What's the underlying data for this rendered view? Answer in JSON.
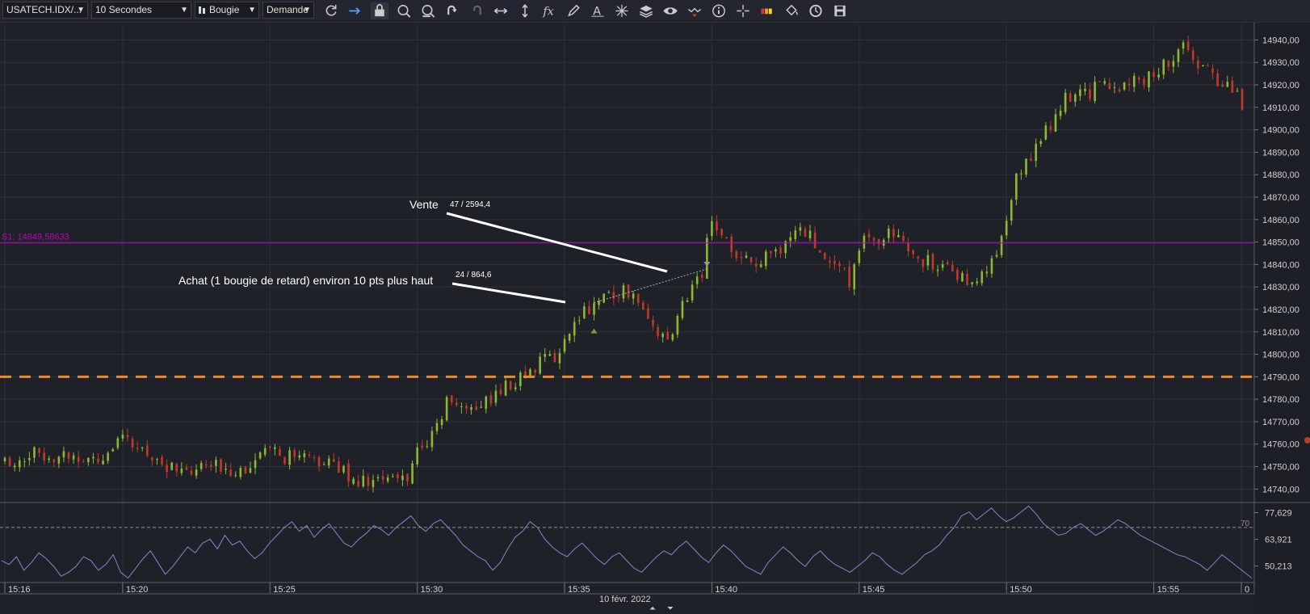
{
  "toolbar": {
    "instrument": "USATECH.IDX/...",
    "period": "10 Secondes",
    "chart_style": "Bougie",
    "offer_side": "Demande",
    "icons": [
      "refresh-icon",
      "shift-right-icon",
      "lock-icon",
      "zoom-in-icon",
      "zoom-out-icon",
      "undo-icon",
      "redo-icon",
      "horizontal-resize-icon",
      "vertical-resize-icon",
      "fx-indicator-icon",
      "pencil-icon",
      "text-tool-icon",
      "pattern-icon",
      "layers-icon",
      "eye-icon",
      "signals-icon",
      "info-icon",
      "crosshair-icon",
      "color-bar-icon",
      "paint-bucket-icon",
      "history-icon",
      "save-icon"
    ]
  },
  "colors": {
    "background": "#1e2128",
    "bullish": "#8cb832",
    "bearish": "#c0392b",
    "pivot_line": "#c000c0",
    "dashed_level": "#f08a24",
    "oscillator": "#7b8cc8"
  },
  "chart_data": [
    {
      "type": "candlestick",
      "title": "",
      "x_ticks": [
        "15:16",
        "15:20",
        "15:25",
        "15:30",
        "15:35",
        "15:40",
        "15:45",
        "15:50",
        "15:55",
        "0"
      ],
      "date_label": "10 févr. 2022",
      "y_ticks": [
        "14940,00",
        "14930,00",
        "14920,00",
        "14910,00",
        "14900,00",
        "14890,00",
        "14880,00",
        "14870,00",
        "14860,00",
        "14850,00",
        "14840,00",
        "14830,00",
        "14820,00",
        "14810,00",
        "14800,00",
        "14790,00",
        "14780,00",
        "14770,00",
        "14760,00",
        "14750,00",
        "14740,00"
      ],
      "ylim": [
        14734,
        14947
      ],
      "time_range": [
        "15:16",
        "15:58"
      ],
      "pivot_label": "S1: 14849,58633",
      "pivot_value": 14849.58633,
      "dashed_level_value": 14790,
      "annotations": [
        {
          "label": "Vente",
          "detail": "47 / 2594,4",
          "price": 14838,
          "time": "15:39:50"
        },
        {
          "label": "Achat (1 bougie de retard) environ 10 pts plus haut",
          "detail": "24 / 864,6",
          "price": 14823,
          "time": "15:36:00"
        }
      ],
      "close_path": [
        [
          "15:16",
          14752
        ],
        [
          "15:17",
          14756
        ],
        [
          "15:18",
          14755
        ],
        [
          "15:19",
          14753
        ],
        [
          "15:20",
          14761
        ],
        [
          "15:21",
          14755
        ],
        [
          "15:22",
          14746
        ],
        [
          "15:23",
          14750
        ],
        [
          "15:24",
          14749
        ],
        [
          "15:25",
          14756
        ],
        [
          "15:26",
          14753
        ],
        [
          "15:27",
          14752
        ],
        [
          "15:28",
          14744
        ],
        [
          "15:29",
          14743
        ],
        [
          "15:29:40",
          14746
        ],
        [
          "15:30",
          14757
        ],
        [
          "15:30:40",
          14766
        ],
        [
          "15:31",
          14779
        ],
        [
          "15:32",
          14776
        ],
        [
          "15:33",
          14785
        ],
        [
          "15:34",
          14795
        ],
        [
          "15:34:50",
          14800
        ],
        [
          "15:35",
          14807
        ],
        [
          "15:35:30",
          14818
        ],
        [
          "15:36",
          14823
        ],
        [
          "15:37",
          14829
        ],
        [
          "15:37:40",
          14823
        ],
        [
          "15:38",
          14810
        ],
        [
          "15:38:40",
          14807
        ],
        [
          "15:39",
          14823
        ],
        [
          "15:39:40",
          14837
        ],
        [
          "15:40",
          14861
        ],
        [
          "15:40:40",
          14846
        ],
        [
          "15:41",
          14840
        ],
        [
          "15:42",
          14843
        ],
        [
          "15:43",
          14857
        ],
        [
          "15:44",
          14843
        ],
        [
          "15:44:40",
          14833
        ],
        [
          "15:45",
          14849
        ],
        [
          "15:46",
          14853
        ],
        [
          "15:47",
          14843
        ],
        [
          "15:48",
          14837
        ],
        [
          "15:49",
          14833
        ],
        [
          "15:49:40",
          14843
        ],
        [
          "15:50",
          14857
        ],
        [
          "15:50:20",
          14878
        ],
        [
          "15:51",
          14893
        ],
        [
          "15:52",
          14913
        ],
        [
          "15:53",
          14918
        ],
        [
          "15:54",
          14920
        ],
        [
          "15:55",
          14924
        ],
        [
          "15:56",
          14936
        ],
        [
          "15:57",
          14924
        ],
        [
          "15:57:40",
          14919
        ],
        [
          "15:58",
          14911
        ]
      ]
    },
    {
      "type": "line",
      "title": "",
      "y_ticks": [
        "77,629",
        "63,921",
        "50,213"
      ],
      "ylim": [
        43,
        82
      ],
      "reference_level": 70,
      "reference_label": "70",
      "values": [
        53,
        51,
        55,
        48,
        52,
        57,
        54,
        50,
        45,
        47,
        50,
        55,
        53,
        48,
        51,
        56,
        47,
        44,
        49,
        54,
        58,
        52,
        46,
        50,
        55,
        60,
        57,
        62,
        64,
        59,
        66,
        61,
        63,
        58,
        54,
        57,
        62,
        66,
        70,
        73,
        68,
        71,
        65,
        69,
        72,
        67,
        62,
        60,
        64,
        67,
        71,
        69,
        66,
        70,
        73,
        76,
        71,
        68,
        72,
        74,
        70,
        66,
        61,
        58,
        55,
        53,
        48,
        52,
        59,
        65,
        68,
        73,
        70,
        64,
        60,
        57,
        55,
        59,
        62,
        58,
        54,
        51,
        55,
        57,
        53,
        49,
        47,
        51,
        55,
        58,
        56,
        60,
        63,
        59,
        55,
        52,
        57,
        61,
        58,
        54,
        50,
        48,
        46,
        52,
        56,
        60,
        57,
        53,
        50,
        55,
        58,
        54,
        51,
        49,
        47,
        50,
        53,
        57,
        55,
        51,
        48,
        46,
        49,
        52,
        56,
        58,
        61,
        66,
        70,
        76,
        78,
        74,
        77,
        80,
        76,
        73,
        75,
        78,
        81,
        77,
        72,
        69,
        66,
        67,
        70,
        72,
        69,
        66,
        68,
        71,
        74,
        72,
        69,
        66,
        64,
        62,
        60,
        58,
        56,
        55,
        53,
        51,
        48,
        52,
        56,
        53,
        50,
        47,
        44
      ]
    }
  ]
}
